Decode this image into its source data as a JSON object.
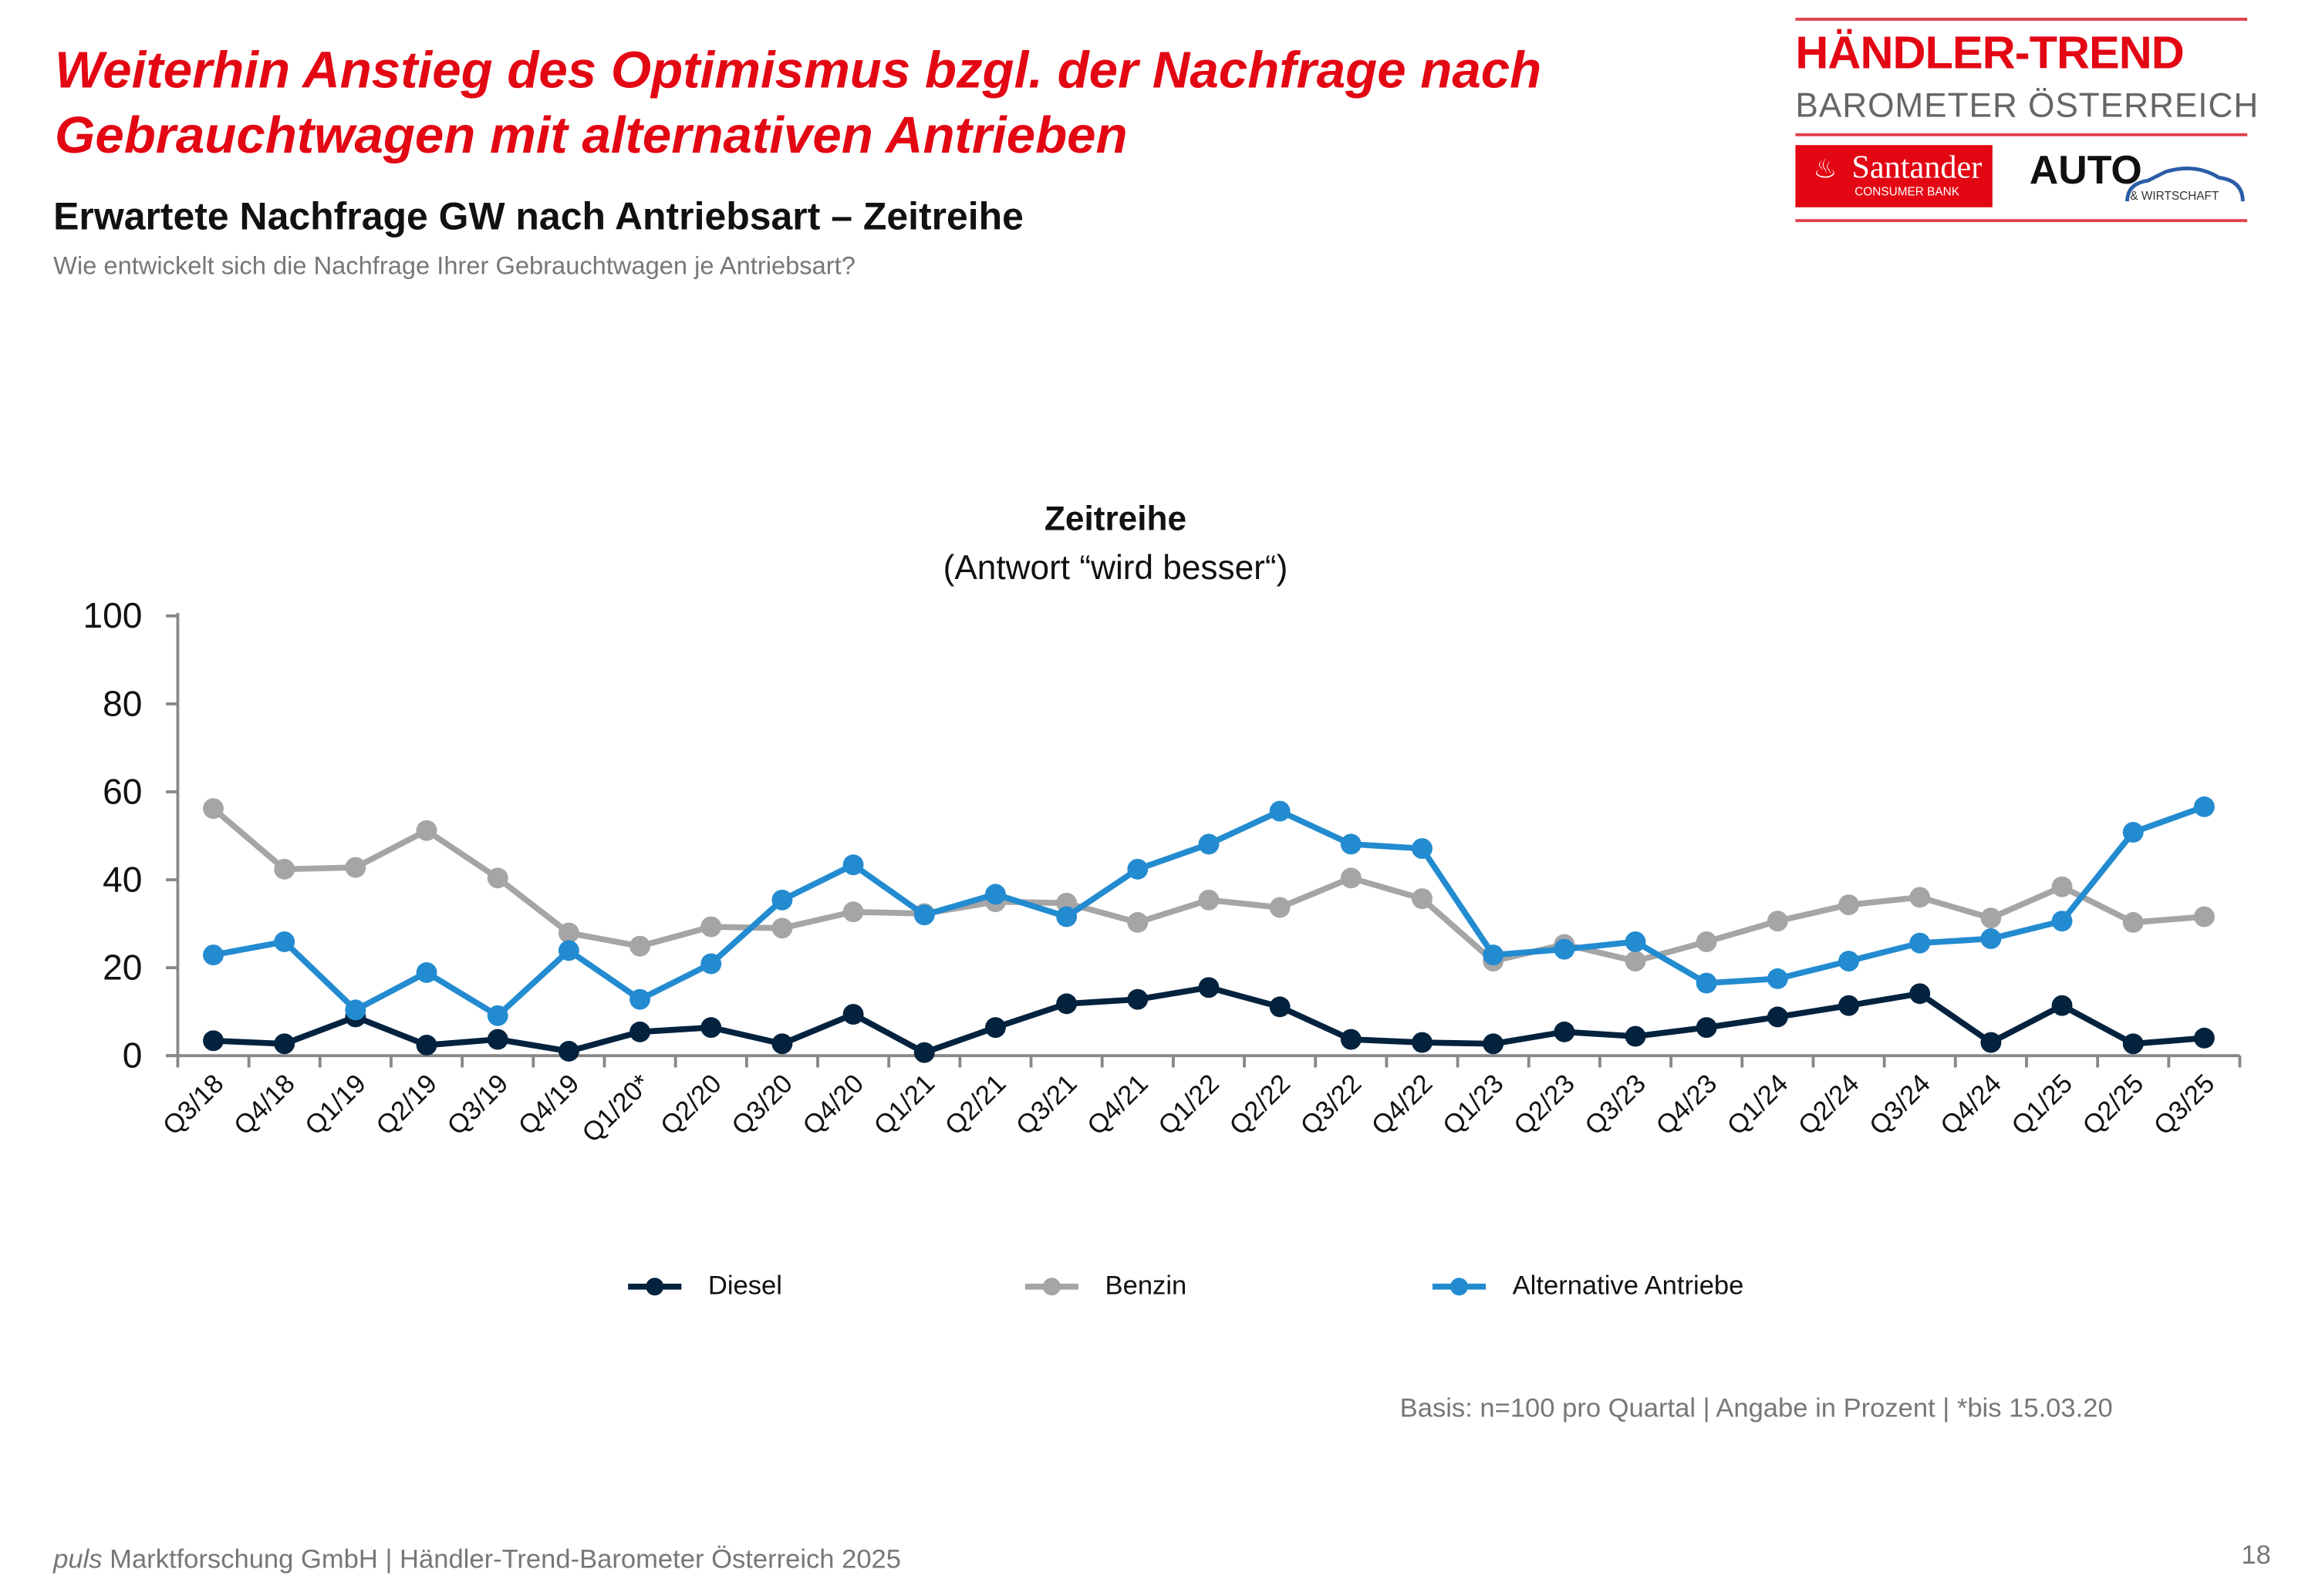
{
  "header": {
    "headline_line1": "Weiterhin Anstieg des Optimismus bzgl. der Nachfrage nach",
    "headline_line2": "Gebrauchtwagen mit alternativen Antrieben",
    "subtitle": "Erwartete Nachfrage GW nach Antriebsart – Zeitreihe",
    "question": "Wie entwickelt sich die Nachfrage Ihrer Gebrauchtwagen je Antriebsart?"
  },
  "logo": {
    "line1": "HÄNDLER-TREND",
    "line2": "BAROMETER ÖSTERREICH",
    "sponsor1": "Santander",
    "sponsor1_sub": "CONSUMER BANK",
    "sponsor2": "AUTO",
    "sponsor2_sub": "& WIRTSCHAFT"
  },
  "chart_data": {
    "type": "line",
    "title": "Zeitreihe",
    "subtitle": "(Antwort “wird besser“)",
    "ylim": [
      0,
      100
    ],
    "yticks": [
      "0",
      "20",
      "40",
      "60",
      "80",
      "100"
    ],
    "grid": false,
    "legend_position": "bottom",
    "categories": [
      "Q3/18",
      "Q4/18",
      "Q1/19",
      "Q2/19",
      "Q3/19",
      "Q4/19",
      "Q1/20*",
      "Q2/20",
      "Q3/20",
      "Q4/20",
      "Q1/21",
      "Q2/21",
      "Q3/21",
      "Q4/21",
      "Q1/22",
      "Q2/22",
      "Q3/22",
      "Q4/22",
      "Q1/23",
      "Q2/23",
      "Q3/23",
      "Q4/23",
      "Q1/24",
      "Q2/24",
      "Q3/24",
      "Q4/24",
      "Q1/25",
      "Q2/25",
      "Q3/25"
    ],
    "series": [
      {
        "name": "Diesel",
        "color": "#02223e",
        "values": [
          3.4,
          2.7,
          8.8,
          2.4,
          3.7,
          1,
          5.4,
          6.4,
          2.7,
          9.4,
          0.7,
          6.4,
          11.8,
          12.8,
          15.5,
          11.1,
          3.7,
          3,
          2.7,
          5.4,
          4.4,
          6.4,
          8.8,
          11.4,
          14.1,
          3,
          11.4,
          2.7,
          4
        ]
      },
      {
        "name": "Benzin",
        "color": "#a5a5a5",
        "values": [
          56.2,
          42.4,
          42.8,
          51.2,
          40.4,
          27.9,
          24.9,
          29.3,
          29,
          32.7,
          32.3,
          35,
          34.7,
          30.3,
          35.4,
          33.7,
          40.4,
          35.7,
          21.5,
          25.3,
          21.5,
          25.9,
          30.6,
          34.3,
          36,
          31.3,
          38.4,
          30.3,
          31.6
        ]
      },
      {
        "name": "Alternative Antriebe",
        "color": "#238bd0",
        "values": [
          22.9,
          25.9,
          10.4,
          18.9,
          9.1,
          23.9,
          12.8,
          20.9,
          35.4,
          43.4,
          32,
          36.7,
          31.6,
          42.4,
          48.1,
          55.6,
          48.1,
          47.1,
          22.9,
          24.2,
          25.9,
          16.5,
          17.5,
          21.5,
          25.6,
          26.6,
          30.6,
          50.8,
          56.6
        ]
      }
    ]
  },
  "notes": {
    "basis": "Basis: n=100 pro Quartal | Angabe in Prozent | *bis 15.03.20",
    "footer_italic": "puls",
    "footer_rest": " Marktforschung GmbH | Händler-Trend-Barometer Österreich 2025",
    "page_number": "18"
  }
}
